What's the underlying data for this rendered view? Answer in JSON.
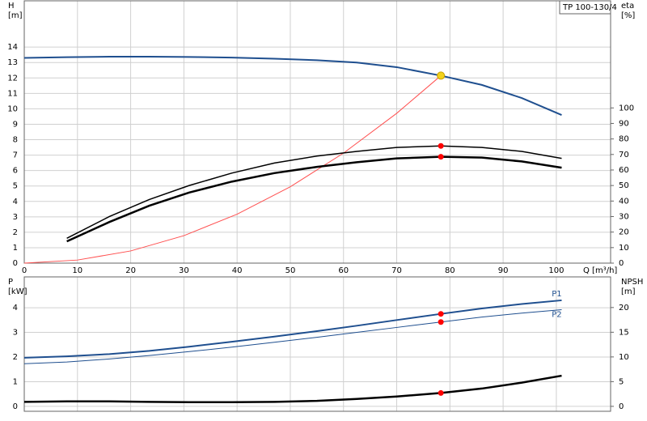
{
  "chart_data": [
    {
      "type": "line",
      "label": "TP 100-130/4",
      "x_label": "Q [m³/h]",
      "y_label": "H",
      "y_unit": "[m]",
      "y2_label": "eta",
      "y2_unit": "[%]",
      "xlim": [
        0,
        110.2
      ],
      "xticks": [
        0,
        10,
        20,
        30,
        40,
        50,
        60,
        70,
        80,
        90,
        100
      ],
      "ylim": [
        0,
        17
      ],
      "yticks": [
        0,
        1,
        2,
        3,
        4,
        5,
        6,
        7,
        8,
        9,
        10,
        11,
        12,
        13,
        14
      ],
      "y2lim": [
        0,
        169
      ],
      "y2ticks": [
        0,
        10,
        20,
        30,
        40,
        50,
        60,
        70,
        80,
        90,
        100
      ],
      "grid": true,
      "duty_x": 78.3,
      "series": [
        {
          "color": "#1f4f8f",
          "width": 2,
          "x": [
            0,
            8,
            16,
            23.5,
            31,
            39,
            47,
            55,
            62.5,
            70,
            78.3,
            86,
            93.5,
            101
          ],
          "values": [
            13.3,
            13.35,
            13.38,
            13.38,
            13.36,
            13.32,
            13.25,
            13.15,
            13.0,
            12.7,
            12.15,
            11.55,
            10.7,
            9.6
          ],
          "duty_value": 12.15,
          "duty_color": "#f2d21b"
        },
        {
          "color": "#ff5050",
          "width": 1,
          "x": [
            0,
            10,
            20,
            30,
            40,
            50,
            60,
            70,
            78.3
          ],
          "values": [
            0,
            0.2,
            0.79,
            1.78,
            3.17,
            4.95,
            7.13,
            9.71,
            12.15
          ]
        },
        {
          "color": "#000000",
          "width": 1.5,
          "axis": "y2",
          "x": [
            8,
            16,
            23.5,
            31,
            39,
            47,
            55,
            62.5,
            70,
            78.3,
            86,
            93.5,
            101
          ],
          "values": [
            16,
            30,
            41,
            50,
            58,
            64.5,
            69,
            72,
            74.5,
            75.5,
            74.5,
            72,
            67.5
          ],
          "duty_value": 75.5,
          "duty_color": "#ff0000"
        },
        {
          "color": "#000000",
          "width": 2.5,
          "axis": "y2",
          "x": [
            8,
            16,
            23.5,
            31,
            39,
            47,
            55,
            62.5,
            70,
            78.3,
            86,
            93.5,
            101
          ],
          "values": [
            14,
            26.5,
            37,
            45.5,
            52.5,
            58,
            62,
            65,
            67.5,
            68.5,
            68,
            65.5,
            61.5
          ],
          "duty_value": 68.5,
          "duty_color": "#ff0000"
        }
      ]
    },
    {
      "type": "line",
      "y_label": "P",
      "y_unit": "[kW]",
      "y2_label": "NPSH",
      "y2_unit": "[m]",
      "xlim": [
        0,
        110.2
      ],
      "ylim": [
        -0.2,
        5.25
      ],
      "yticks": [
        0,
        1,
        2,
        3,
        4
      ],
      "y2lim": [
        -1,
        26.2
      ],
      "y2ticks": [
        0,
        5,
        10,
        15,
        20
      ],
      "grid": true,
      "duty_x": 78.3,
      "series": [
        {
          "name": "P1",
          "color": "#1f4f8f",
          "width": 2,
          "x": [
            0,
            8,
            16,
            23.5,
            31,
            39,
            47,
            55,
            62.5,
            70,
            78.3,
            86,
            93.5,
            101
          ],
          "values": [
            1.97,
            2.03,
            2.12,
            2.25,
            2.42,
            2.62,
            2.83,
            3.05,
            3.27,
            3.5,
            3.75,
            3.97,
            4.15,
            4.3
          ],
          "duty_value": 3.75,
          "duty_color": "#ff0000"
        },
        {
          "name": "P2",
          "color": "#1f4f8f",
          "width": 1,
          "x": [
            0,
            8,
            16,
            23.5,
            31,
            39,
            47,
            55,
            62.5,
            70,
            78.3,
            86,
            93.5,
            101
          ],
          "values": [
            1.73,
            1.8,
            1.92,
            2.06,
            2.22,
            2.4,
            2.6,
            2.8,
            3.0,
            3.2,
            3.42,
            3.62,
            3.78,
            3.92
          ],
          "duty_value": 3.42,
          "duty_color": "#ff0000"
        },
        {
          "color": "#000000",
          "width": 2.5,
          "axis": "y2",
          "x": [
            0,
            8,
            16,
            23.5,
            31,
            39,
            47,
            55,
            62.5,
            70,
            78.3,
            86,
            93.5,
            101
          ],
          "values": [
            0.9,
            1.0,
            1.0,
            0.9,
            0.85,
            0.85,
            0.9,
            1.1,
            1.5,
            2.0,
            2.7,
            3.6,
            4.8,
            6.2
          ],
          "duty_value": 2.7,
          "duty_color": "#ff0000"
        }
      ]
    }
  ]
}
